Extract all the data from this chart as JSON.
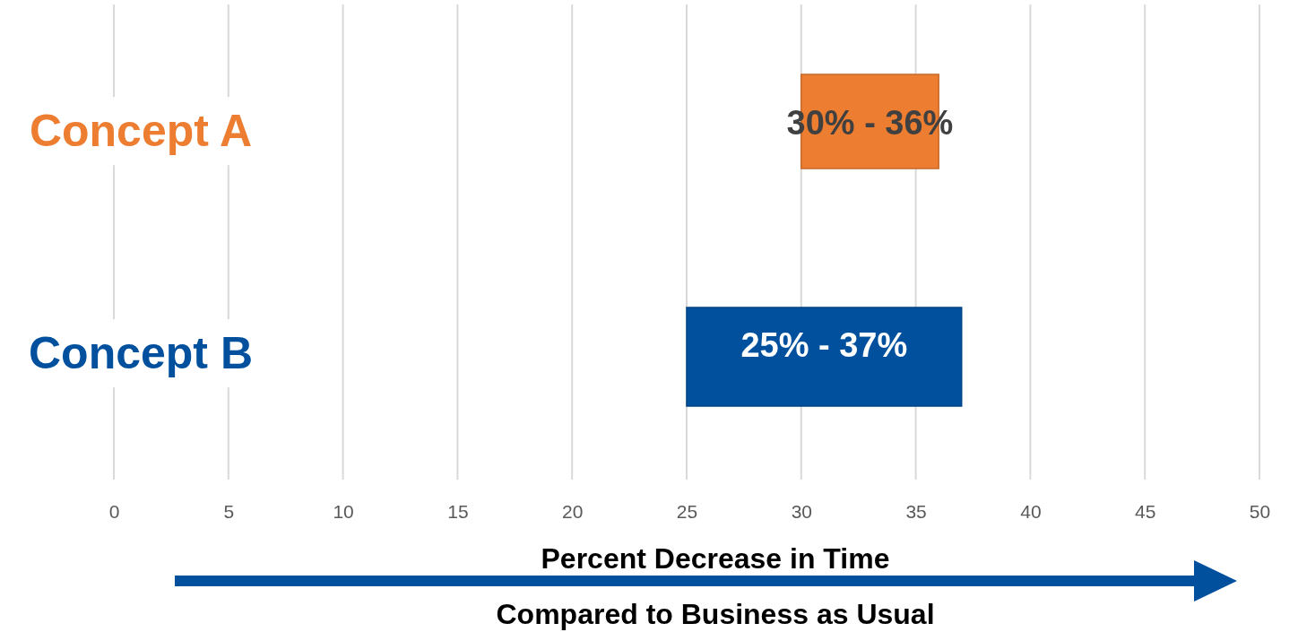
{
  "chart_data": {
    "type": "bar",
    "orientation": "horizontal",
    "categories": [
      "Concept A",
      "Concept B"
    ],
    "base": [
      30,
      25
    ],
    "values": [
      6,
      12
    ],
    "colors": [
      "#ed7d31",
      "#00509e"
    ],
    "xlim": [
      0,
      50
    ],
    "xticks": [
      0,
      5,
      10,
      15,
      20,
      25,
      30,
      35,
      40,
      45,
      50
    ],
    "grid": "x",
    "xlabel": "Percent Decrease in Time",
    "annotations": [
      "30% - 36%",
      "25% - 37%",
      "Compared to Business as Usual"
    ]
  }
}
